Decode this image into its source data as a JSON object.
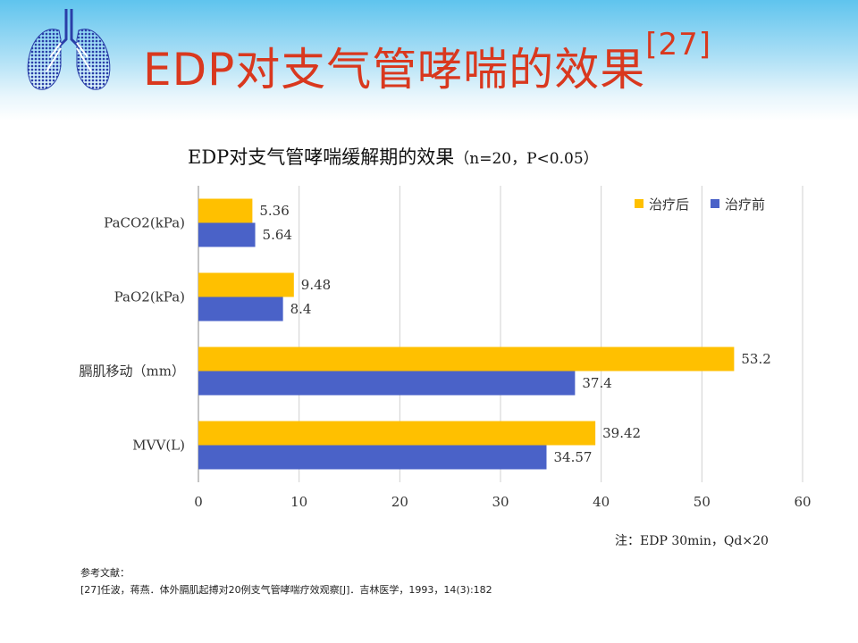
{
  "slide": {
    "title": "EDP对支气管哮喘的效果",
    "title_ref": "[27]",
    "note": "注：EDP 30min，Qd×20",
    "references_heading": "参考文献：",
    "references": [
      "[27]任波，蒋燕．体外膈肌起搏对20例支气管哮喘疗效观察[J]．吉林医学，1993，14(3):182"
    ],
    "colors": {
      "title": "#d9381e",
      "header_gradient_top": "#5fc4ee",
      "logo": "#2a3ea8"
    },
    "logo_icon": "lungs-logo-icon"
  },
  "chart_data": {
    "type": "bar",
    "orientation": "horizontal",
    "title": "EDP对支气管哮喘缓解期的效果",
    "subtitle": "（n=20，P<0.05）",
    "categories": [
      "PaCO2(kPa)",
      "PaO2(kPa)",
      "膈肌移动（mm）",
      "MVV(L)"
    ],
    "series": [
      {
        "name": "治疗后",
        "color": "#ffc000",
        "values": [
          5.36,
          9.48,
          53.2,
          39.42
        ],
        "labels": [
          "5.36",
          "9.48",
          "53.2",
          "39.42"
        ]
      },
      {
        "name": "治疗前",
        "color": "#4a62c8",
        "values": [
          5.64,
          8.4,
          37.4,
          34.57
        ],
        "labels": [
          "5.64",
          "8.4",
          "37.4",
          "34.57"
        ]
      }
    ],
    "xlim": [
      0,
      60
    ],
    "xticks": [
      0,
      10,
      20,
      30,
      40,
      50,
      60
    ],
    "grid": true,
    "legend_position": "top-right"
  }
}
